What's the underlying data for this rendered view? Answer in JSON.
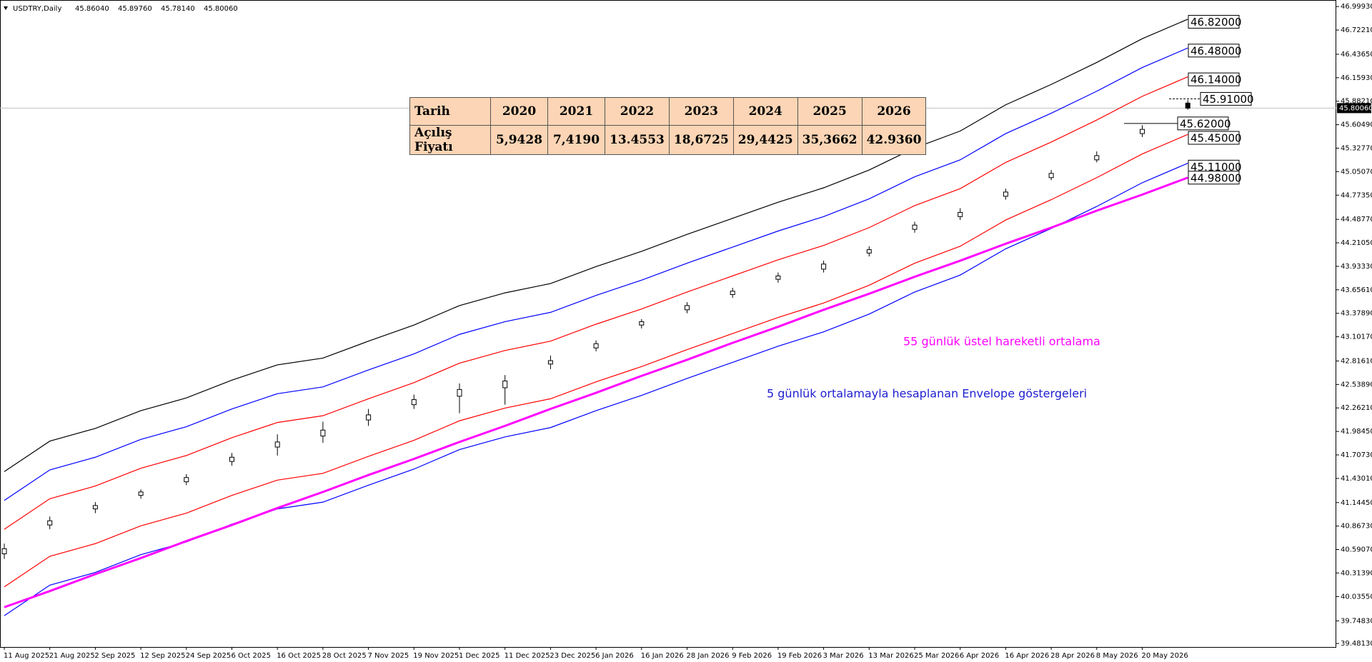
{
  "header": {
    "symbol": "USDTRY,Daily",
    "ohlc_labels": [
      "45.86040",
      "45.89760",
      "45.78140",
      "45.80060"
    ]
  },
  "table": {
    "headers": [
      "Tarih",
      "2020",
      "2021",
      "2022",
      "2023",
      "2024",
      "2025",
      "2026"
    ],
    "rows": [
      [
        "Açılış Fiyatı",
        "5,9428",
        "7,4190",
        "13.4553",
        "18,6725",
        "29,4425",
        "35,3662",
        "42.9360"
      ]
    ]
  },
  "chart_data": {
    "type": "candlestick",
    "categories": [
      "11 Aug 2025",
      "21 Aug 2025",
      "2 Sep 2025",
      "12 Sep 2025",
      "24 Sep 2025",
      "6 Oct 2025",
      "16 Oct 2025",
      "28 Oct 2025",
      "7 Nov 2025",
      "19 Nov 2025",
      "1 Dec 2025",
      "11 Dec 2025",
      "23 Dec 2025",
      "6 Jan 2026",
      "16 Jan 2026",
      "28 Jan 2026",
      "9 Feb 2026",
      "19 Feb 2026",
      "3 Mar 2026",
      "13 Mar 2026",
      "25 Mar 2026",
      "6 Apr 2026",
      "16 Apr 2026",
      "28 Apr 2026",
      "8 May 2026",
      "20 May 2026",
      null
    ],
    "candles": {
      "open": [
        40.54,
        40.88,
        41.07,
        41.23,
        41.39,
        41.63,
        41.8,
        41.93,
        42.12,
        42.3,
        42.4,
        42.5,
        42.78,
        42.97,
        43.24,
        43.42,
        43.6,
        43.78,
        43.9,
        44.09,
        44.37,
        44.52,
        44.76,
        44.98,
        45.19,
        45.5,
        45.8604
      ],
      "high": [
        40.66,
        40.98,
        41.15,
        41.3,
        41.48,
        41.73,
        41.95,
        42.1,
        42.25,
        42.42,
        42.55,
        42.65,
        42.88,
        43.06,
        43.31,
        43.51,
        43.68,
        43.86,
        44.0,
        44.17,
        44.46,
        44.62,
        44.85,
        45.07,
        45.29,
        45.6,
        45.8976
      ],
      "low": [
        40.48,
        40.83,
        41.02,
        41.19,
        41.35,
        41.58,
        41.7,
        41.85,
        42.05,
        42.25,
        42.2,
        42.3,
        42.72,
        42.93,
        43.2,
        43.38,
        43.56,
        43.74,
        43.86,
        44.05,
        44.33,
        44.48,
        44.72,
        44.95,
        45.16,
        45.46,
        45.7814
      ],
      "close": [
        40.6,
        40.93,
        41.11,
        41.27,
        41.44,
        41.68,
        41.86,
        42.0,
        42.18,
        42.36,
        42.48,
        42.58,
        42.82,
        43.02,
        43.28,
        43.47,
        43.64,
        43.82,
        43.96,
        44.13,
        44.42,
        44.57,
        44.81,
        45.03,
        45.24,
        45.55,
        45.8006
      ]
    },
    "series": [
      {
        "name": "Envelope upper 3",
        "color": "#000000",
        "values": [
          41.51,
          41.87,
          42.02,
          42.23,
          42.38,
          42.59,
          42.77,
          42.85,
          43.05,
          43.24,
          43.47,
          43.62,
          43.73,
          43.93,
          44.11,
          44.31,
          44.5,
          44.69,
          44.86,
          45.07,
          45.33,
          45.53,
          45.84,
          46.08,
          46.34,
          46.62,
          46.85
        ]
      },
      {
        "name": "Envelope upper 2",
        "color": "#0000ff",
        "values": [
          41.17,
          41.53,
          41.68,
          41.89,
          42.04,
          42.25,
          42.43,
          42.51,
          42.71,
          42.9,
          43.13,
          43.28,
          43.39,
          43.59,
          43.77,
          43.97,
          44.16,
          44.35,
          44.52,
          44.73,
          44.99,
          45.19,
          45.5,
          45.74,
          46.0,
          46.28,
          46.51
        ]
      },
      {
        "name": "Envelope upper 1",
        "color": "#ff0000",
        "values": [
          40.83,
          41.19,
          41.34,
          41.55,
          41.7,
          41.91,
          42.09,
          42.17,
          42.37,
          42.56,
          42.79,
          42.94,
          43.05,
          43.25,
          43.43,
          43.63,
          43.82,
          44.01,
          44.18,
          44.39,
          44.65,
          44.85,
          45.16,
          45.4,
          45.66,
          45.94,
          46.17
        ]
      },
      {
        "name": "Envelope lower 1",
        "color": "#ff0000",
        "values": [
          40.15,
          40.51,
          40.66,
          40.87,
          41.02,
          41.23,
          41.41,
          41.49,
          41.69,
          41.88,
          42.11,
          42.26,
          42.37,
          42.57,
          42.75,
          42.95,
          43.14,
          43.33,
          43.5,
          43.71,
          43.97,
          44.17,
          44.48,
          44.72,
          44.98,
          45.26,
          45.49
        ]
      },
      {
        "name": "Envelope lower 2",
        "color": "#0000ff",
        "values": [
          39.81,
          40.17,
          40.32,
          40.53,
          40.68,
          40.89,
          41.07,
          41.15,
          41.35,
          41.54,
          41.77,
          41.92,
          42.03,
          42.23,
          42.41,
          42.61,
          42.8,
          42.99,
          43.16,
          43.37,
          43.63,
          43.83,
          44.14,
          44.38,
          44.64,
          44.92,
          45.15
        ]
      },
      {
        "name": "EMA 55",
        "color": "#ff00ff",
        "values": [
          39.91,
          40.1,
          40.3,
          40.49,
          40.69,
          40.88,
          41.08,
          41.27,
          41.47,
          41.66,
          41.86,
          42.05,
          42.25,
          42.44,
          42.64,
          42.83,
          43.03,
          43.22,
          43.42,
          43.61,
          43.81,
          44.0,
          44.2,
          44.39,
          44.59,
          44.78,
          44.98
        ]
      }
    ],
    "levels": [
      {
        "value": 46.82,
        "label": "46.82000"
      },
      {
        "value": 46.48,
        "label": "46.48000"
      },
      {
        "value": 46.14,
        "label": "46.14000"
      },
      {
        "value": 45.91,
        "label": "45.91000"
      },
      {
        "value": 45.62,
        "label": "45.62000"
      },
      {
        "value": 45.45,
        "label": "45.45000"
      },
      {
        "value": 45.11,
        "label": "45.11000"
      },
      {
        "value": 44.98,
        "label": "44.98000"
      }
    ],
    "current_price": {
      "value": 45.8006,
      "label": "45.80060"
    },
    "annotations": [
      {
        "text": "55 günlük üstel hareketli ortalama",
        "color": "#ff00ff"
      },
      {
        "text": "5 günlük ortalamayla hesaplanan Envelope göstergeleri",
        "color": "#2020d0"
      }
    ],
    "ylim": [
      39.44,
      47.06
    ],
    "yticks": [
      {
        "value": 39.4813,
        "label": "39.48130"
      },
      {
        "value": 39.7483,
        "label": "39.74830"
      },
      {
        "value": 40.0355,
        "label": "40.03550"
      },
      {
        "value": 40.3139,
        "label": "40.31390"
      },
      {
        "value": 40.5907,
        "label": "40.59070"
      },
      {
        "value": 40.8673,
        "label": "40.86730"
      },
      {
        "value": 41.1445,
        "label": "41.14450"
      },
      {
        "value": 41.4301,
        "label": "41.43010"
      },
      {
        "value": 41.7073,
        "label": "41.70730"
      },
      {
        "value": 41.9845,
        "label": "41.98450"
      },
      {
        "value": 42.2621,
        "label": "42.26210"
      },
      {
        "value": 42.5389,
        "label": "42.53890"
      },
      {
        "value": 42.8161,
        "label": "42.81610"
      },
      {
        "value": 43.1017,
        "label": "43.10170"
      },
      {
        "value": 43.3789,
        "label": "43.37890"
      },
      {
        "value": 43.6561,
        "label": "43.65610"
      },
      {
        "value": 43.9333,
        "label": "43.93330"
      },
      {
        "value": 44.2105,
        "label": "44.21050"
      },
      {
        "value": 44.4877,
        "label": "44.48770"
      },
      {
        "value": 44.7735,
        "label": "44.77350"
      },
      {
        "value": 45.0507,
        "label": "45.05070"
      },
      {
        "value": 45.3277,
        "label": "45.32770"
      },
      {
        "value": 45.6049,
        "label": "45.60490"
      },
      {
        "value": 45.8821,
        "label": "45.88210"
      },
      {
        "value": 46.1593,
        "label": "46.15930"
      },
      {
        "value": 46.4365,
        "label": "46.43650"
      },
      {
        "value": 46.7221,
        "label": "46.72210"
      },
      {
        "value": 46.9993,
        "label": "46.99930"
      }
    ]
  }
}
